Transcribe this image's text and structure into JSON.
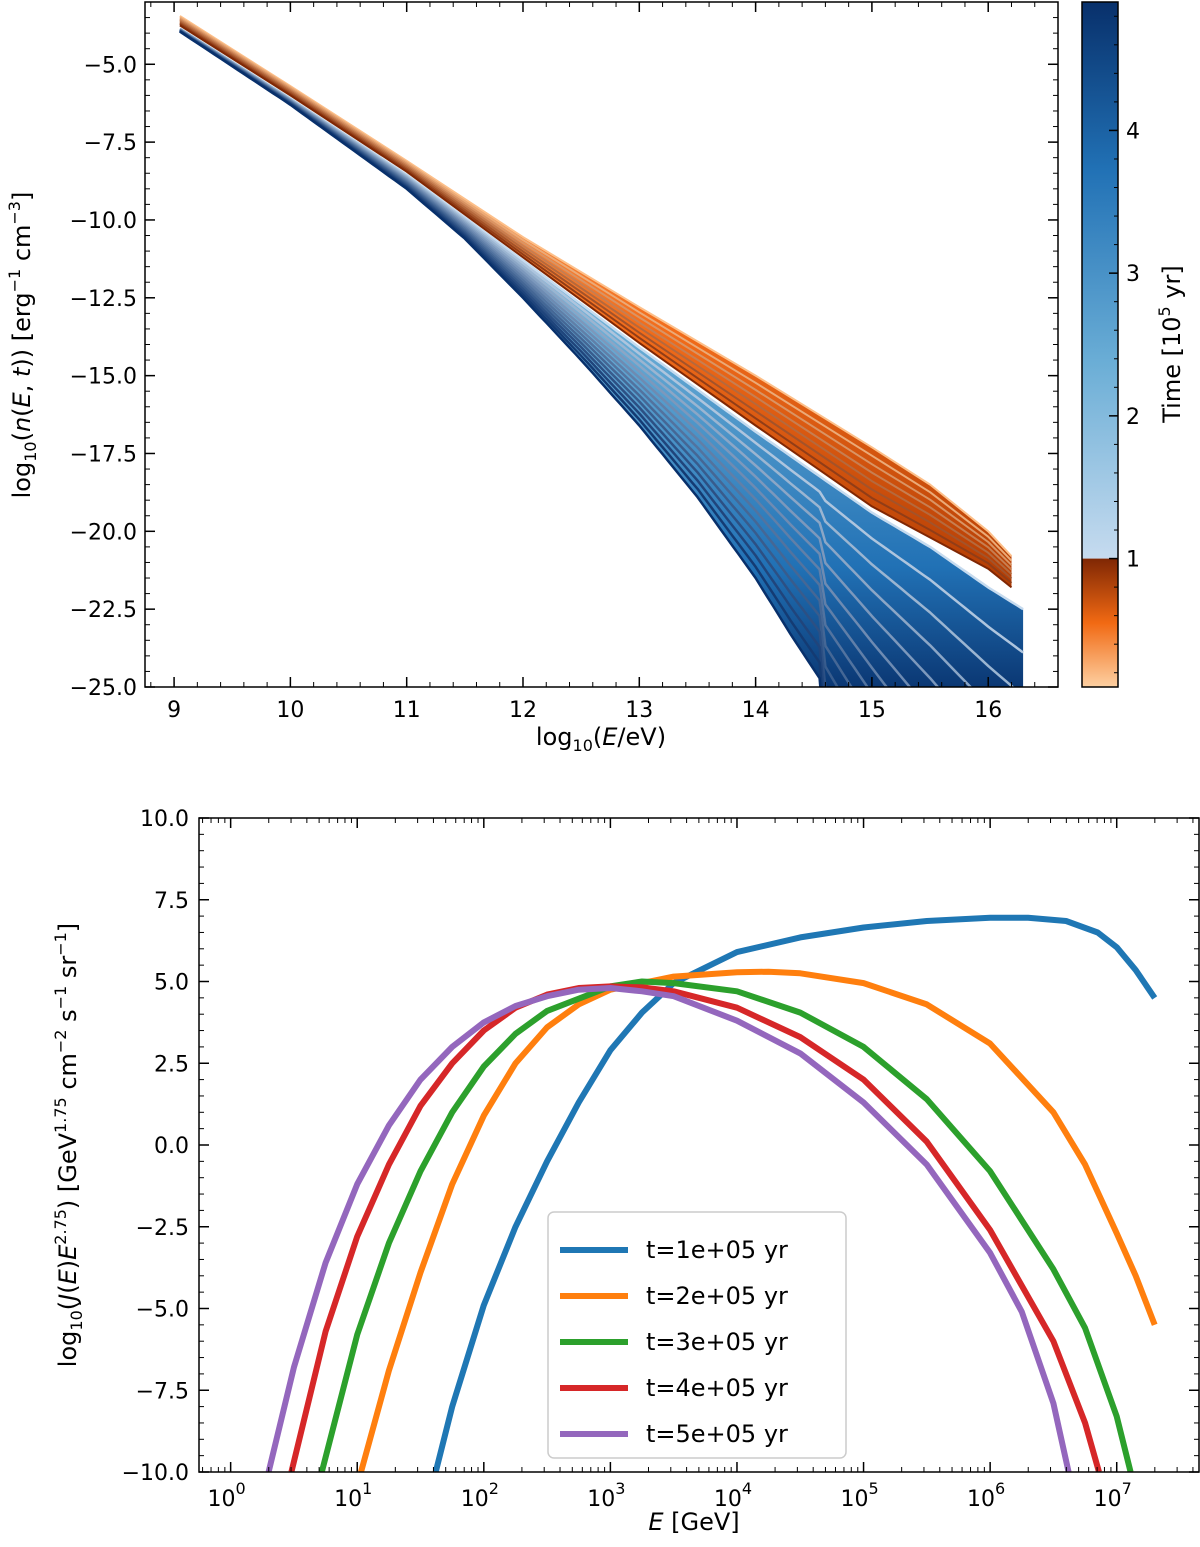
{
  "chart_data": [
    {
      "type": "line",
      "panel": "top",
      "title": "",
      "xlabel": "log10(E/eV)",
      "ylabel": "log10(n(E,t)) [erg⁻¹ cm⁻³]",
      "xlim": [
        8.75,
        16.6
      ],
      "ylim": [
        -25.0,
        -3.0
      ],
      "xticks": [
        9,
        10,
        11,
        12,
        13,
        14,
        15,
        16
      ],
      "xtick_labels": [
        "9",
        "10",
        "11",
        "12",
        "13",
        "14",
        "15",
        "16"
      ],
      "yticks": [
        -5.0,
        -7.5,
        -10.0,
        -12.5,
        -15.0,
        -17.5,
        -20.0,
        -22.5,
        -25.0
      ],
      "ytick_labels": [
        "−5.0",
        "−7.5",
        "−10.0",
        "−12.5",
        "−15.0",
        "−17.5",
        "−20.0",
        "−22.5",
        "−25.0"
      ],
      "grid": false,
      "family_description": "family of spectra colored by time; orange for t < 1e5 yr, blue for t > 1e5 yr",
      "early_family": {
        "color_light": "#fdc08a",
        "color_dark": "#7f2704",
        "x": [
          9.05,
          10.0,
          11.0,
          12.0,
          13.0,
          14.0,
          15.0,
          15.5,
          16.0,
          16.2
        ],
        "y_upper": [
          -3.45,
          -5.7,
          -8.1,
          -10.55,
          -12.8,
          -15.0,
          -17.3,
          -18.5,
          -20.0,
          -20.8
        ],
        "y_lower": [
          -3.75,
          -6.0,
          -8.45,
          -11.2,
          -13.95,
          -16.6,
          -19.2,
          -20.2,
          -21.2,
          -21.8
        ],
        "cutoff_energy": 16.2
      },
      "late_family": {
        "color_light": "#c6dbef",
        "color_dark": "#08306b",
        "x_upper": [
          9.05,
          10.0,
          11.0,
          12.0,
          13.0,
          14.0,
          15.0,
          15.5,
          16.0,
          16.3
        ],
        "y_upper": [
          -3.85,
          -6.1,
          -8.55,
          -11.3,
          -14.1,
          -16.8,
          -19.4,
          -20.5,
          -21.8,
          -22.5
        ],
        "x_lower": [
          9.05,
          10.0,
          11.0,
          11.5,
          12.0,
          12.5,
          13.0,
          13.5,
          14.0,
          14.3,
          14.6
        ],
        "y_lower": [
          -3.95,
          -6.3,
          -9.0,
          -10.6,
          -12.5,
          -14.5,
          -16.6,
          -18.9,
          -21.5,
          -23.3,
          -25.0
        ],
        "cutoff_energy": 16.3
      },
      "colorbar": {
        "label": "Time [10⁵ yr]",
        "range": [
          0.1,
          4.9
        ],
        "ticks": [
          1,
          2,
          3,
          4
        ],
        "tick_labels": [
          "1",
          "2",
          "3",
          "4"
        ],
        "split_value": 1.0,
        "colors_low": [
          "#fdd0a2",
          "#f16913",
          "#7f2704"
        ],
        "colors_high": [
          "#c6dbef",
          "#6baed6",
          "#2171b5",
          "#08306b"
        ]
      }
    },
    {
      "type": "line",
      "panel": "bottom",
      "title": "",
      "xlabel": "E [GeV]",
      "ylabel": "log10(J(E)E^2.75) [GeV^1.75 cm⁻² s⁻¹ sr⁻¹]",
      "xscale": "log",
      "xlim_log10": [
        -0.25,
        7.65
      ],
      "ylim": [
        -10.0,
        10.0
      ],
      "xticks_log10": [
        0,
        1,
        2,
        3,
        4,
        5,
        6,
        7
      ],
      "xtick_labels": [
        "10",
        "10",
        "10",
        "10",
        "10",
        "10",
        "10",
        "10"
      ],
      "xtick_exponents": [
        "0",
        "1",
        "2",
        "3",
        "4",
        "5",
        "6",
        "7"
      ],
      "yticks": [
        10.0,
        7.5,
        5.0,
        2.5,
        0.0,
        -2.5,
        -5.0,
        -7.5,
        -10.0
      ],
      "ytick_labels": [
        "10.0",
        "7.5",
        "5.0",
        "2.5",
        "0.0",
        "−2.5",
        "−5.0",
        "−7.5",
        "−10.0"
      ],
      "grid": false,
      "legend_position": "lower-center",
      "series": [
        {
          "name": "t=1e+05 yr",
          "color": "#1f77b4",
          "x_log10": [
            1.62,
            1.75,
            2.0,
            2.25,
            2.5,
            2.75,
            3.0,
            3.25,
            3.5,
            4.0,
            4.5,
            5.0,
            5.5,
            6.0,
            6.3,
            6.6,
            6.85,
            7.0,
            7.15,
            7.3
          ],
          "y": [
            -10.0,
            -8.0,
            -4.9,
            -2.5,
            -0.5,
            1.3,
            2.9,
            4.05,
            4.95,
            5.9,
            6.35,
            6.65,
            6.85,
            6.95,
            6.95,
            6.85,
            6.5,
            6.05,
            5.35,
            4.5
          ]
        },
        {
          "name": "t=2e+05 yr",
          "color": "#ff7f0e",
          "x_log10": [
            1.03,
            1.25,
            1.5,
            1.75,
            2.0,
            2.25,
            2.5,
            2.75,
            3.0,
            3.5,
            4.0,
            4.25,
            4.5,
            5.0,
            5.5,
            6.0,
            6.5,
            6.75,
            7.0,
            7.15,
            7.3
          ],
          "y": [
            -10.0,
            -6.9,
            -3.9,
            -1.2,
            0.9,
            2.5,
            3.6,
            4.3,
            4.75,
            5.15,
            5.28,
            5.3,
            5.25,
            4.95,
            4.3,
            3.1,
            1.0,
            -0.6,
            -2.7,
            -4.0,
            -5.5
          ]
        },
        {
          "name": "t=3e+05 yr",
          "color": "#2ca02c",
          "x_log10": [
            0.72,
            1.0,
            1.25,
            1.5,
            1.75,
            2.0,
            2.25,
            2.5,
            3.0,
            3.25,
            3.5,
            4.0,
            4.5,
            5.0,
            5.5,
            6.0,
            6.5,
            6.75,
            7.0,
            7.11
          ],
          "y": [
            -10.0,
            -5.8,
            -3.0,
            -0.8,
            1.0,
            2.4,
            3.4,
            4.1,
            4.85,
            5.0,
            4.95,
            4.7,
            4.05,
            3.0,
            1.4,
            -0.8,
            -3.8,
            -5.6,
            -8.3,
            -10.0
          ]
        },
        {
          "name": "t=4e+05 yr",
          "color": "#d62728",
          "x_log10": [
            0.48,
            0.75,
            1.0,
            1.25,
            1.5,
            1.75,
            2.0,
            2.25,
            2.5,
            2.75,
            3.0,
            3.25,
            3.5,
            4.0,
            4.5,
            5.0,
            5.5,
            6.0,
            6.5,
            6.75,
            6.86
          ],
          "y": [
            -10.0,
            -5.7,
            -2.8,
            -0.6,
            1.2,
            2.5,
            3.5,
            4.2,
            4.6,
            4.8,
            4.85,
            4.82,
            4.7,
            4.2,
            3.3,
            2.0,
            0.1,
            -2.6,
            -6.0,
            -8.5,
            -10.0
          ]
        },
        {
          "name": "t=5e+05 yr",
          "color": "#9467bd",
          "x_log10": [
            0.3,
            0.5,
            0.75,
            1.0,
            1.25,
            1.5,
            1.75,
            2.0,
            2.25,
            2.5,
            2.75,
            3.0,
            3.25,
            3.5,
            4.0,
            4.5,
            5.0,
            5.5,
            6.0,
            6.25,
            6.5,
            6.62
          ],
          "y": [
            -10.0,
            -6.8,
            -3.6,
            -1.2,
            0.6,
            2.0,
            3.0,
            3.75,
            4.25,
            4.55,
            4.75,
            4.8,
            4.7,
            4.55,
            3.8,
            2.8,
            1.3,
            -0.6,
            -3.3,
            -5.1,
            -7.9,
            -10.0
          ]
        }
      ]
    }
  ]
}
